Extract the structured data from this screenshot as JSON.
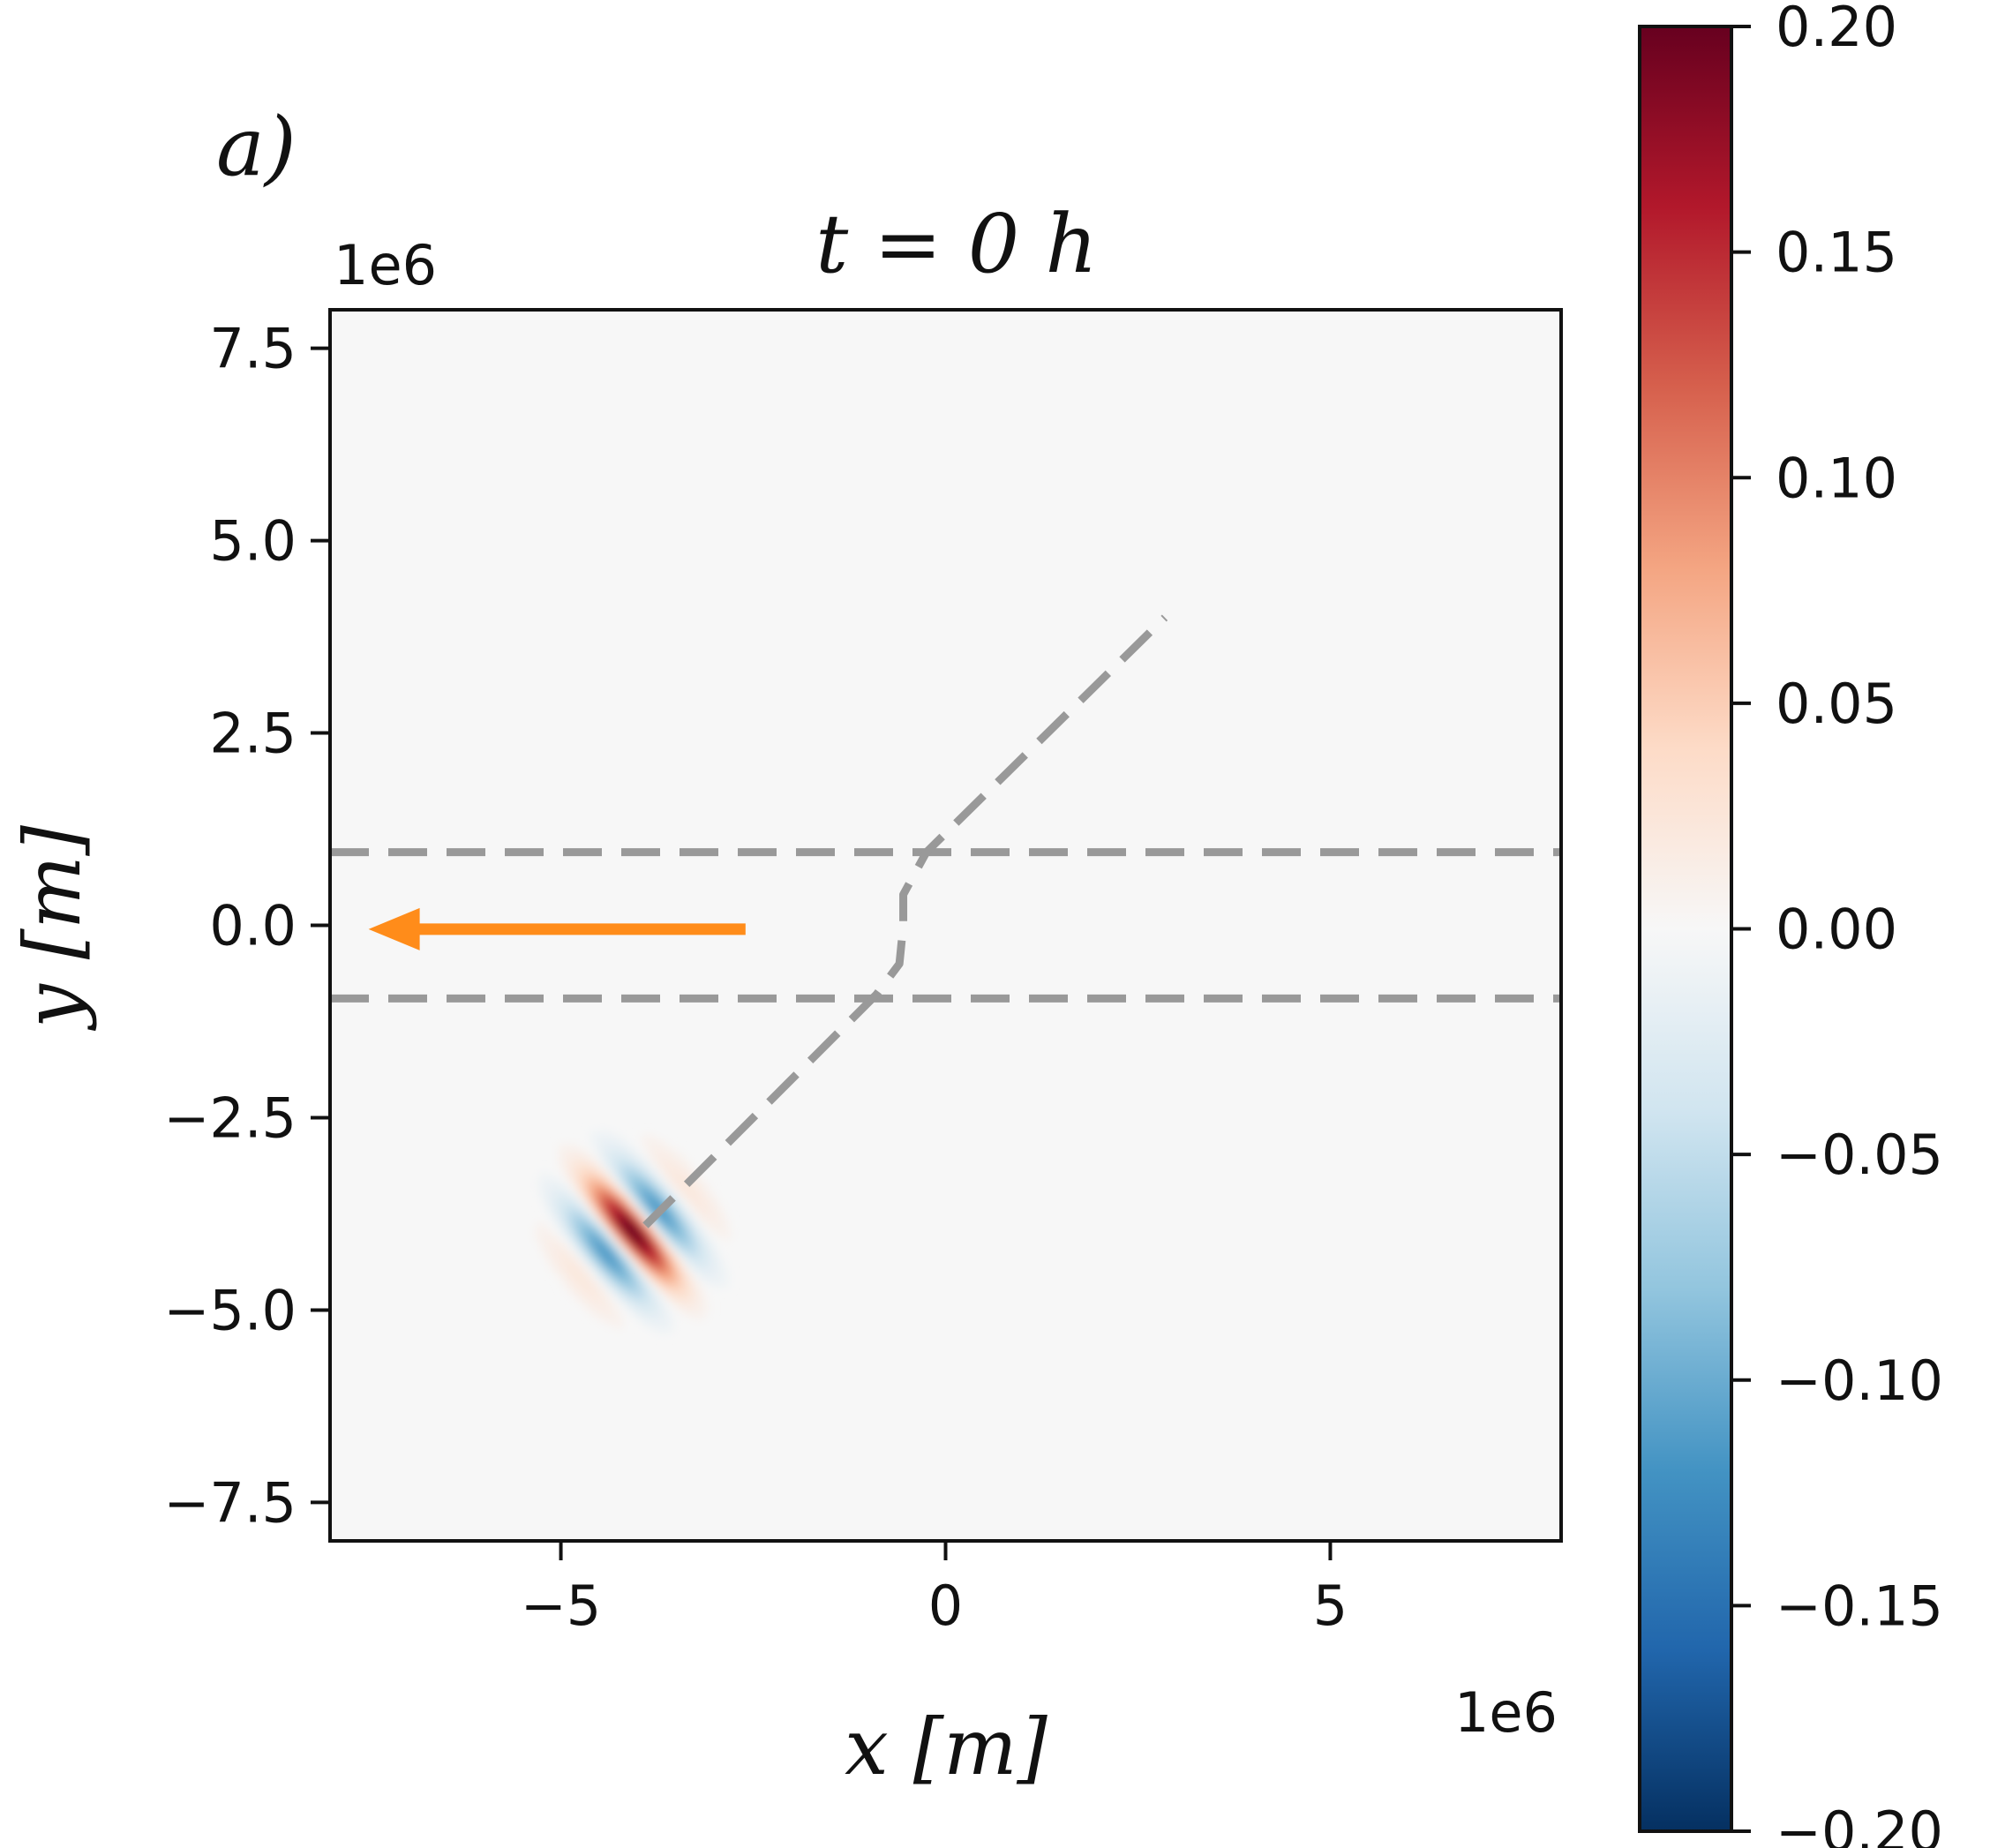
{
  "panel_label": "a)",
  "chart_data": {
    "type": "heatmap",
    "title": "t = 0 h",
    "xlabel": "x [m]",
    "ylabel": "y [m]",
    "x_offset_label": "1e6",
    "y_offset_label": "1e6",
    "xlim": [
      -8,
      8
    ],
    "ylim": [
      -8,
      8
    ],
    "xticks": [
      -5,
      0,
      5
    ],
    "xtick_labels": [
      "−5",
      "0",
      "5"
    ],
    "yticks": [
      7.5,
      5.0,
      2.5,
      0.0,
      -2.5,
      -5.0,
      -7.5
    ],
    "ytick_labels": [
      "7.5",
      "5.0",
      "2.5",
      "0.0",
      "−2.5",
      "−5.0",
      "−7.5"
    ],
    "grid": false,
    "background_value": 0.0,
    "colormap": "RdBu_r",
    "colorbar": {
      "vmin": -0.2,
      "vmax": 0.2,
      "ticks": [
        0.2,
        0.15,
        0.1,
        0.05,
        0.0,
        -0.05,
        -0.1,
        -0.15,
        -0.2
      ],
      "tick_labels": [
        "0.20",
        "0.15",
        "0.10",
        "0.05",
        "0.00",
        "−0.05",
        "−0.10",
        "−0.15",
        "−0.20"
      ],
      "colors": [
        "#053061",
        "#2166ac",
        "#4393c3",
        "#92c5de",
        "#d1e5f0",
        "#f7f7f7",
        "#fddbc7",
        "#f4a582",
        "#d6604d",
        "#b2182b",
        "#67001f"
      ]
    },
    "wave_packet": {
      "center": [
        -4.1,
        -4.0
      ],
      "amplitude": 0.2,
      "crest_orientation_deg": -50,
      "wavelength": 1.0,
      "envelope_along_crest": 1.1,
      "envelope_across_crest": 0.9
    },
    "boundary_lines": {
      "style": "dashed",
      "color": "#999999",
      "y_values": [
        0.95,
        -0.95
      ]
    },
    "ray_path": {
      "style": "dashed",
      "color": "#999999",
      "points": [
        [
          -3.9,
          -3.9
        ],
        [
          -0.9,
          -0.9
        ],
        [
          -0.6,
          -0.5
        ],
        [
          -0.55,
          0.0
        ],
        [
          -0.55,
          0.4
        ],
        [
          -0.25,
          0.95
        ],
        [
          2.85,
          4.0
        ]
      ]
    },
    "arrow": {
      "color": "#ff8c1a",
      "from": [
        -2.6,
        -0.05
      ],
      "to": [
        -7.5,
        -0.05
      ]
    }
  }
}
